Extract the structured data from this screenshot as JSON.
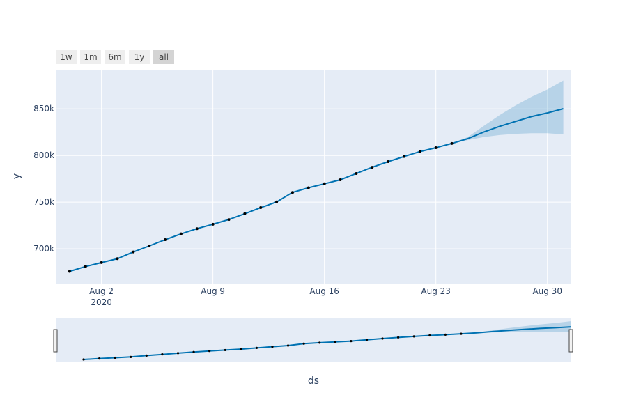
{
  "range_selector": {
    "buttons": [
      "1w",
      "1m",
      "6m",
      "1y",
      "all"
    ],
    "active": "all"
  },
  "colors": {
    "line": "#0072B2",
    "marker": "#000000",
    "band": "rgba(0,114,178,0.2)",
    "plot_bg": "#E5ECF6",
    "grid": "#ffffff",
    "text": "#2a3f5f"
  },
  "chart_data": {
    "type": "line",
    "xlabel": "ds",
    "ylabel": "y",
    "x_ticks": [
      {
        "date": "2020-08-02",
        "label": "Aug 2",
        "sublabel": "2020"
      },
      {
        "date": "2020-08-09",
        "label": "Aug 9",
        "sublabel": ""
      },
      {
        "date": "2020-08-16",
        "label": "Aug 16",
        "sublabel": ""
      },
      {
        "date": "2020-08-23",
        "label": "Aug 23",
        "sublabel": ""
      },
      {
        "date": "2020-08-30",
        "label": "Aug 30",
        "sublabel": ""
      }
    ],
    "y_ticks": [
      {
        "value": 700000,
        "label": "700k"
      },
      {
        "value": 750000,
        "label": "750k"
      },
      {
        "value": 800000,
        "label": "800k"
      },
      {
        "value": 850000,
        "label": "850k"
      }
    ],
    "xlim": [
      "2020-07-30",
      "2020-08-31"
    ],
    "ylim": [
      662000,
      892000
    ],
    "actual": {
      "x": [
        "2020-07-31",
        "2020-08-01",
        "2020-08-02",
        "2020-08-03",
        "2020-08-04",
        "2020-08-05",
        "2020-08-06",
        "2020-08-07",
        "2020-08-08",
        "2020-08-09",
        "2020-08-10",
        "2020-08-11",
        "2020-08-12",
        "2020-08-13",
        "2020-08-14",
        "2020-08-15",
        "2020-08-16",
        "2020-08-17",
        "2020-08-18",
        "2020-08-19",
        "2020-08-20",
        "2020-08-21",
        "2020-08-22",
        "2020-08-23",
        "2020-08-24"
      ],
      "y": [
        675800,
        681000,
        685200,
        689400,
        696600,
        703100,
        709800,
        716000,
        721600,
        726300,
        731400,
        737600,
        744100,
        750300,
        760400,
        765400,
        769700,
        774000,
        780700,
        787400,
        793400,
        798900,
        804200,
        808400,
        812900
      ]
    },
    "forecast": {
      "x": [
        "2020-07-31",
        "2020-08-01",
        "2020-08-02",
        "2020-08-03",
        "2020-08-04",
        "2020-08-05",
        "2020-08-06",
        "2020-08-07",
        "2020-08-08",
        "2020-08-09",
        "2020-08-10",
        "2020-08-11",
        "2020-08-12",
        "2020-08-13",
        "2020-08-14",
        "2020-08-15",
        "2020-08-16",
        "2020-08-17",
        "2020-08-18",
        "2020-08-19",
        "2020-08-20",
        "2020-08-21",
        "2020-08-22",
        "2020-08-23",
        "2020-08-24",
        "2020-08-25",
        "2020-08-26",
        "2020-08-27",
        "2020-08-28",
        "2020-08-29",
        "2020-08-30",
        "2020-08-31"
      ],
      "yhat": [
        675800,
        681000,
        685200,
        689400,
        696600,
        703100,
        709800,
        716000,
        721600,
        726300,
        731400,
        737600,
        744100,
        750300,
        760400,
        765400,
        769700,
        774000,
        780700,
        787400,
        793400,
        798900,
        804200,
        808400,
        812900,
        818100,
        825100,
        831200,
        836500,
        841700,
        845600,
        850200
      ],
      "lower": [
        675800,
        681000,
        685200,
        689400,
        696600,
        703100,
        709800,
        716000,
        721600,
        726300,
        731400,
        737600,
        744100,
        750300,
        760400,
        765400,
        769700,
        774000,
        780700,
        787400,
        793400,
        798900,
        804200,
        808400,
        812900,
        816500,
        819800,
        821900,
        823200,
        823900,
        823900,
        822600
      ],
      "upper": [
        675800,
        681000,
        685200,
        689400,
        696600,
        703100,
        709800,
        716000,
        721600,
        726300,
        731400,
        737600,
        744100,
        750300,
        760400,
        765400,
        769700,
        774000,
        780700,
        787400,
        793400,
        798900,
        804200,
        808400,
        812900,
        819700,
        831600,
        843200,
        853600,
        862900,
        870800,
        880400
      ]
    },
    "grid": true,
    "legend": "none",
    "rangeslider": true
  }
}
